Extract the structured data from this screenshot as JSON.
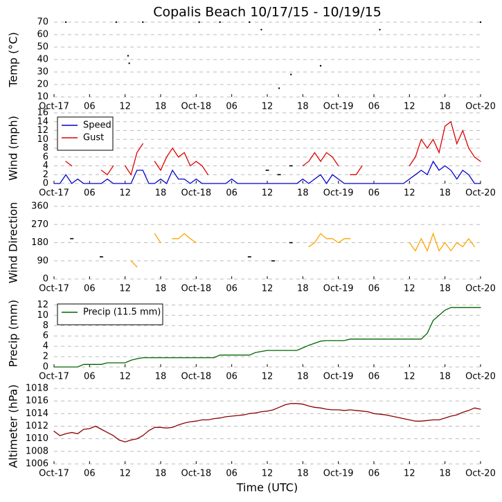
{
  "chart_data": [
    {
      "type": "scatter",
      "title": "Copalis Beach 10/17/15 - 10/19/15",
      "y_label": "Temp (°C)",
      "x": [
        2,
        10.5,
        12.5,
        12.7,
        15,
        24.5,
        28,
        33,
        35,
        38,
        40,
        45,
        55,
        72
      ],
      "values": [
        70,
        70,
        43,
        37,
        70,
        70,
        70,
        70,
        64,
        17,
        28,
        35,
        64,
        70
      ],
      "color": "#000000",
      "xlim": [
        0,
        72
      ],
      "ylim": [
        10,
        70
      ],
      "yticks": [
        10,
        20,
        30,
        40,
        50,
        60,
        70
      ],
      "xticks": [
        {
          "value": 0,
          "label": "Oct-17"
        },
        {
          "value": 6,
          "label": "06"
        },
        {
          "value": 12,
          "label": "12"
        },
        {
          "value": 18,
          "label": "18"
        },
        {
          "value": 24,
          "label": "Oct-18"
        },
        {
          "value": 30,
          "label": "06"
        },
        {
          "value": 36,
          "label": "12"
        },
        {
          "value": 42,
          "label": "18"
        },
        {
          "value": 48,
          "label": "Oct-19"
        },
        {
          "value": 54,
          "label": "06"
        },
        {
          "value": 60,
          "label": "12"
        },
        {
          "value": 66,
          "label": "18"
        },
        {
          "value": 72,
          "label": "Oct-20"
        }
      ],
      "grid": true
    },
    {
      "type": "line",
      "y_label": "Wind (mph)",
      "legend": "upper left",
      "x": [
        0,
        1,
        2,
        3,
        4,
        5,
        6,
        7,
        8,
        9,
        10,
        11,
        12,
        13,
        14,
        15,
        16,
        17,
        18,
        19,
        20,
        21,
        22,
        23,
        24,
        25,
        26,
        27,
        28,
        29,
        30,
        31,
        32,
        33,
        34,
        35,
        36,
        37,
        38,
        39,
        40,
        41,
        42,
        43,
        44,
        45,
        46,
        47,
        48,
        49,
        50,
        51,
        52,
        53,
        54,
        55,
        56,
        57,
        58,
        59,
        60,
        61,
        62,
        63,
        64,
        65,
        66,
        67,
        68,
        69,
        70,
        71,
        72
      ],
      "series": [
        {
          "name": "Speed",
          "color": "#0000cc",
          "values": [
            0,
            0,
            2,
            0,
            1,
            0,
            0,
            0,
            0,
            1,
            0,
            0,
            0,
            0,
            3,
            3,
            0,
            0,
            1,
            0,
            3,
            1,
            1,
            0,
            1,
            0,
            0,
            0,
            0,
            0,
            1,
            0,
            0,
            0,
            0,
            0,
            0,
            0,
            0,
            0,
            0,
            0,
            1,
            0,
            1,
            2,
            0,
            2,
            1,
            0,
            0,
            0,
            0,
            0,
            0,
            0,
            0,
            0,
            0,
            0,
            1,
            2,
            3,
            2,
            5,
            3,
            4,
            3,
            1,
            3,
            2,
            0,
            0
          ]
        },
        {
          "name": "Gust",
          "color": "#dd0000",
          "values": [
            null,
            null,
            5,
            4,
            null,
            null,
            null,
            null,
            3,
            2,
            4,
            null,
            4,
            2,
            7,
            9,
            null,
            5,
            3,
            6,
            8,
            6,
            7,
            4,
            5,
            4,
            2,
            null,
            null,
            null,
            null,
            null,
            null,
            null,
            null,
            null,
            3,
            null,
            2,
            null,
            4,
            null,
            4,
            5,
            7,
            5,
            7,
            6,
            4,
            null,
            2,
            2,
            4,
            null,
            null,
            null,
            null,
            null,
            null,
            null,
            4,
            6,
            10,
            8,
            10,
            7,
            13,
            14,
            9,
            12,
            8,
            6,
            5
          ]
        }
      ],
      "xlim": [
        0,
        72
      ],
      "ylim": [
        0,
        16
      ],
      "yticks": [
        0,
        2,
        4,
        6,
        8,
        10,
        12,
        14,
        16
      ],
      "xticks": [
        {
          "value": 0,
          "label": "Oct-17"
        },
        {
          "value": 6,
          "label": "06"
        },
        {
          "value": 12,
          "label": "12"
        },
        {
          "value": 18,
          "label": "18"
        },
        {
          "value": 24,
          "label": "Oct-18"
        },
        {
          "value": 30,
          "label": "06"
        },
        {
          "value": 36,
          "label": "12"
        },
        {
          "value": 42,
          "label": "18"
        },
        {
          "value": 48,
          "label": "Oct-19"
        },
        {
          "value": 54,
          "label": "06"
        },
        {
          "value": 60,
          "label": "12"
        },
        {
          "value": 66,
          "label": "18"
        },
        {
          "value": 72,
          "label": "Oct-20"
        }
      ],
      "grid": true
    },
    {
      "type": "line",
      "y_label": "Wind Direction",
      "x": [
        0,
        1,
        2,
        3,
        4,
        5,
        6,
        7,
        8,
        9,
        10,
        11,
        12,
        13,
        14,
        15,
        16,
        17,
        18,
        19,
        20,
        21,
        22,
        23,
        24,
        25,
        26,
        27,
        28,
        29,
        30,
        31,
        32,
        33,
        34,
        35,
        36,
        37,
        38,
        39,
        40,
        41,
        42,
        43,
        44,
        45,
        46,
        47,
        48,
        49,
        50,
        51,
        52,
        53,
        54,
        55,
        56,
        57,
        58,
        59,
        60,
        61,
        62,
        63,
        64,
        65,
        66,
        67,
        68,
        69,
        70,
        71,
        72
      ],
      "series": [
        {
          "color": "#ffa500",
          "values": [
            null,
            null,
            null,
            200,
            null,
            null,
            null,
            null,
            110,
            null,
            null,
            null,
            null,
            90,
            60,
            null,
            null,
            225,
            180,
            null,
            200,
            200,
            225,
            200,
            180,
            null,
            null,
            null,
            null,
            null,
            null,
            null,
            null,
            110,
            null,
            null,
            null,
            90,
            null,
            null,
            180,
            null,
            null,
            160,
            180,
            225,
            200,
            200,
            180,
            200,
            200,
            null,
            null,
            null,
            null,
            null,
            null,
            null,
            null,
            null,
            180,
            140,
            200,
            140,
            225,
            140,
            180,
            140,
            180,
            160,
            200,
            160,
            null
          ]
        }
      ],
      "xlim": [
        0,
        72
      ],
      "ylim": [
        0,
        360
      ],
      "yticks": [
        0,
        90,
        180,
        270,
        360
      ],
      "xticks": [
        {
          "value": 0,
          "label": "Oct-17"
        },
        {
          "value": 6,
          "label": "06"
        },
        {
          "value": 12,
          "label": "12"
        },
        {
          "value": 18,
          "label": "18"
        },
        {
          "value": 24,
          "label": "Oct-18"
        },
        {
          "value": 30,
          "label": "06"
        },
        {
          "value": 36,
          "label": "12"
        },
        {
          "value": 42,
          "label": "18"
        },
        {
          "value": 48,
          "label": "Oct-19"
        },
        {
          "value": 54,
          "label": "06"
        },
        {
          "value": 60,
          "label": "12"
        },
        {
          "value": 66,
          "label": "18"
        },
        {
          "value": 72,
          "label": "Oct-20"
        }
      ],
      "grid": true
    },
    {
      "type": "line",
      "y_label": "Precip (mm)",
      "legend": "upper left",
      "x": [
        0,
        1,
        2,
        3,
        4,
        5,
        6,
        7,
        8,
        9,
        10,
        11,
        12,
        13,
        14,
        15,
        16,
        17,
        18,
        19,
        20,
        21,
        22,
        23,
        24,
        25,
        26,
        27,
        28,
        29,
        30,
        31,
        32,
        33,
        34,
        35,
        36,
        37,
        38,
        39,
        40,
        41,
        42,
        43,
        44,
        45,
        46,
        47,
        48,
        49,
        50,
        51,
        52,
        53,
        54,
        55,
        56,
        57,
        58,
        59,
        60,
        61,
        62,
        63,
        64,
        65,
        66,
        67,
        68,
        69,
        70,
        71,
        72
      ],
      "series": [
        {
          "name": "Precip (11.5 mm)",
          "color": "#006400",
          "values": [
            0,
            0,
            0,
            0,
            0,
            0.5,
            0.5,
            0.5,
            0.5,
            0.8,
            0.8,
            0.8,
            0.8,
            1.3,
            1.6,
            1.8,
            1.8,
            1.8,
            1.8,
            1.8,
            1.8,
            1.8,
            1.8,
            1.8,
            1.8,
            1.8,
            1.8,
            1.8,
            2.3,
            2.3,
            2.3,
            2.3,
            2.3,
            2.3,
            2.8,
            3.0,
            3.2,
            3.2,
            3.2,
            3.2,
            3.2,
            3.2,
            3.7,
            4.2,
            4.6,
            5.0,
            5.1,
            5.1,
            5.1,
            5.1,
            5.4,
            5.4,
            5.4,
            5.4,
            5.4,
            5.4,
            5.4,
            5.4,
            5.4,
            5.4,
            5.4,
            5.4,
            5.4,
            6.5,
            9,
            10,
            11,
            11.5,
            11.5,
            11.5,
            11.5,
            11.5,
            11.5
          ]
        }
      ],
      "xlim": [
        0,
        72
      ],
      "ylim": [
        0,
        13
      ],
      "yticks": [
        0,
        2,
        4,
        6,
        8,
        10,
        12
      ],
      "xticks": [
        {
          "value": 0,
          "label": "Oct-17"
        },
        {
          "value": 6,
          "label": "06"
        },
        {
          "value": 12,
          "label": "12"
        },
        {
          "value": 18,
          "label": "18"
        },
        {
          "value": 24,
          "label": "Oct-18"
        },
        {
          "value": 30,
          "label": "06"
        },
        {
          "value": 36,
          "label": "12"
        },
        {
          "value": 42,
          "label": "18"
        },
        {
          "value": 48,
          "label": "Oct-19"
        },
        {
          "value": 54,
          "label": "06"
        },
        {
          "value": 60,
          "label": "12"
        },
        {
          "value": 66,
          "label": "18"
        },
        {
          "value": 72,
          "label": "Oct-20"
        }
      ],
      "grid": true
    },
    {
      "type": "line",
      "y_label": "Altimeter (hPa)",
      "x_label": "Time (UTC)",
      "x": [
        0,
        1,
        2,
        3,
        4,
        5,
        6,
        7,
        8,
        9,
        10,
        11,
        12,
        13,
        14,
        15,
        16,
        17,
        18,
        19,
        20,
        21,
        22,
        23,
        24,
        25,
        26,
        27,
        28,
        29,
        30,
        31,
        32,
        33,
        34,
        35,
        36,
        37,
        38,
        39,
        40,
        41,
        42,
        43,
        44,
        45,
        46,
        47,
        48,
        49,
        50,
        51,
        52,
        53,
        54,
        55,
        56,
        57,
        58,
        59,
        60,
        61,
        62,
        63,
        64,
        65,
        66,
        67,
        68,
        69,
        70,
        71,
        72
      ],
      "series": [
        {
          "color": "#8b0000",
          "values": [
            1011.2,
            1010.5,
            1010.8,
            1011,
            1010.8,
            1011.5,
            1011.6,
            1012,
            1011.5,
            1011,
            1010.5,
            1009.8,
            1009.5,
            1009.8,
            1010,
            1010.5,
            1011.3,
            1011.8,
            1011.8,
            1011.7,
            1011.8,
            1012.2,
            1012.5,
            1012.7,
            1012.8,
            1013,
            1013,
            1013.2,
            1013.3,
            1013.5,
            1013.6,
            1013.7,
            1013.8,
            1014,
            1014.1,
            1014.3,
            1014.4,
            1014.6,
            1015,
            1015.4,
            1015.6,
            1015.6,
            1015.5,
            1015.2,
            1015,
            1014.9,
            1014.7,
            1014.6,
            1014.6,
            1014.5,
            1014.6,
            1014.5,
            1014.4,
            1014.3,
            1014,
            1013.9,
            1013.8,
            1013.6,
            1013.4,
            1013.2,
            1013,
            1012.8,
            1012.8,
            1012.9,
            1013,
            1013,
            1013.3,
            1013.6,
            1013.8,
            1014.2,
            1014.5,
            1014.9,
            1014.7
          ]
        }
      ],
      "xlim": [
        0,
        72
      ],
      "ylim": [
        1006,
        1018
      ],
      "yticks": [
        1006,
        1008,
        1010,
        1012,
        1014,
        1016,
        1018
      ],
      "xticks": [
        {
          "value": 0,
          "label": "Oct-17"
        },
        {
          "value": 6,
          "label": "06"
        },
        {
          "value": 12,
          "label": "12"
        },
        {
          "value": 18,
          "label": "18"
        },
        {
          "value": 24,
          "label": "Oct-18"
        },
        {
          "value": 30,
          "label": "06"
        },
        {
          "value": 36,
          "label": "12"
        },
        {
          "value": 42,
          "label": "18"
        },
        {
          "value": 48,
          "label": "Oct-19"
        },
        {
          "value": 54,
          "label": "06"
        },
        {
          "value": 60,
          "label": "12"
        },
        {
          "value": 66,
          "label": "18"
        },
        {
          "value": 72,
          "label": "Oct-20"
        }
      ],
      "grid": true
    }
  ]
}
